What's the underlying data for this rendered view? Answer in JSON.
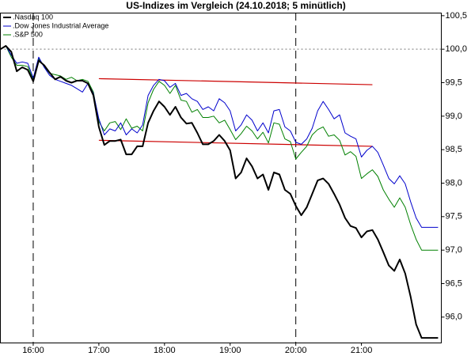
{
  "chart_data": {
    "type": "line",
    "title": "US-Indizes im Vergleich (24.10.2018; 5 minütlich)",
    "x": [
      930,
      935,
      940,
      945,
      950,
      955,
      960,
      965,
      970,
      975,
      980,
      985,
      990,
      995,
      1000,
      1005,
      1010,
      1015,
      1020,
      1025,
      1030,
      1035,
      1040,
      1045,
      1050,
      1055,
      1060,
      1065,
      1070,
      1075,
      1080,
      1085,
      1090,
      1095,
      1100,
      1105,
      1110,
      1115,
      1120,
      1125,
      1130,
      1135,
      1140,
      1145,
      1150,
      1155,
      1160,
      1165,
      1170,
      1175,
      1180,
      1185,
      1190,
      1195,
      1200,
      1205,
      1210,
      1215,
      1220,
      1225,
      1230,
      1235,
      1240,
      1245,
      1250,
      1255,
      1260,
      1265,
      1270,
      1275,
      1280,
      1285,
      1290,
      1295,
      1300,
      1305,
      1310,
      1315,
      1320,
      1325,
      1330
    ],
    "series": [
      {
        "name": ".Nasdaq 100",
        "color": "#000000",
        "width": 2,
        "values": [
          100.0,
          100.05,
          99.96,
          99.67,
          99.73,
          99.69,
          99.52,
          99.83,
          99.76,
          99.65,
          99.55,
          99.59,
          99.53,
          99.5,
          99.53,
          99.53,
          99.49,
          99.31,
          98.84,
          98.57,
          98.63,
          98.63,
          98.65,
          98.43,
          98.43,
          98.55,
          98.55,
          98.9,
          99.08,
          99.22,
          99.14,
          99.02,
          99.14,
          98.98,
          98.89,
          98.9,
          98.75,
          98.58,
          98.58,
          98.63,
          98.72,
          98.63,
          98.49,
          98.07,
          98.16,
          98.37,
          98.25,
          98.07,
          98.13,
          97.9,
          98.16,
          98.13,
          97.9,
          97.84,
          97.66,
          97.52,
          97.64,
          97.84,
          98.04,
          98.07,
          97.99,
          97.84,
          97.68,
          97.48,
          97.36,
          97.33,
          97.19,
          97.28,
          97.3,
          97.16,
          96.97,
          96.77,
          96.69,
          96.86,
          96.65,
          96.3,
          95.89,
          95.69,
          95.69,
          95.69,
          95.69
        ]
      },
      {
        "name": ".Dow Jones Industrial Average",
        "color": "#0000cc",
        "width": 1,
        "values": [
          100.0,
          100.05,
          99.91,
          99.79,
          99.81,
          99.79,
          99.57,
          99.88,
          99.73,
          99.61,
          99.55,
          99.52,
          99.49,
          99.46,
          99.41,
          99.36,
          99.49,
          99.34,
          98.96,
          98.72,
          98.81,
          98.78,
          98.9,
          98.72,
          98.81,
          98.75,
          98.87,
          99.31,
          99.46,
          99.55,
          99.53,
          99.43,
          99.49,
          99.31,
          99.34,
          99.26,
          99.22,
          99.1,
          99.14,
          99.08,
          99.26,
          99.2,
          99.08,
          98.78,
          98.87,
          99.02,
          98.94,
          98.78,
          98.9,
          98.75,
          99.08,
          99.1,
          98.84,
          98.78,
          98.61,
          98.58,
          98.66,
          98.82,
          99.08,
          99.22,
          99.1,
          98.96,
          99.02,
          98.75,
          98.7,
          98.66,
          98.39,
          98.49,
          98.55,
          98.46,
          98.27,
          98.07,
          97.99,
          98.11,
          97.99,
          97.72,
          97.48,
          97.34,
          97.34,
          97.34,
          97.34
        ]
      },
      {
        "name": ".S&P 500",
        "color": "#008000",
        "width": 1,
        "values": [
          100.0,
          100.05,
          99.88,
          99.76,
          99.76,
          99.74,
          99.55,
          99.86,
          99.74,
          99.64,
          99.62,
          99.6,
          99.55,
          99.58,
          99.53,
          99.55,
          99.52,
          99.36,
          98.92,
          98.78,
          98.9,
          98.92,
          98.8,
          98.96,
          98.82,
          98.85,
          98.78,
          99.2,
          99.4,
          99.52,
          99.46,
          99.34,
          99.46,
          99.24,
          99.22,
          99.06,
          99.1,
          98.98,
          98.98,
          99.0,
          98.9,
          98.94,
          98.8,
          98.65,
          98.74,
          98.85,
          98.78,
          98.66,
          98.76,
          98.6,
          98.9,
          98.88,
          98.66,
          98.62,
          98.36,
          98.46,
          98.55,
          98.72,
          98.8,
          98.84,
          98.7,
          98.72,
          98.64,
          98.42,
          98.47,
          98.4,
          98.07,
          98.14,
          98.2,
          98.1,
          97.9,
          97.76,
          97.64,
          97.78,
          97.64,
          97.38,
          97.16,
          97.0,
          97.0,
          97.0,
          97.0
        ]
      }
    ],
    "trend_lines": [
      {
        "color": "#cc0000",
        "x": [
          1020,
          1270
        ],
        "values": [
          99.56,
          99.47
        ]
      },
      {
        "color": "#cc0000",
        "x": [
          1020,
          1270
        ],
        "values": [
          98.64,
          98.55
        ]
      }
    ],
    "vertical_markers": [
      960,
      1200
    ],
    "reference_line": 100,
    "xlim": [
      930,
      1333
    ],
    "ylim": [
      95.62,
      100.64
    ],
    "xticks": [
      {
        "value": 960,
        "label": "16:00"
      },
      {
        "value": 1020,
        "label": "17:00"
      },
      {
        "value": 1080,
        "label": "18:00"
      },
      {
        "value": 1140,
        "label": "19:00"
      },
      {
        "value": 1200,
        "label": "20:00"
      },
      {
        "value": 1260,
        "label": "21:00"
      }
    ],
    "yticks": [
      {
        "value": 96,
        "label": "96,0"
      },
      {
        "value": 96.5,
        "label": "96,5"
      },
      {
        "value": 97,
        "label": "97,0"
      },
      {
        "value": 97.5,
        "label": "97,5"
      },
      {
        "value": 98,
        "label": "98,0"
      },
      {
        "value": 98.5,
        "label": "98,5"
      },
      {
        "value": 99,
        "label": "99,0"
      },
      {
        "value": 99.5,
        "label": "99,5"
      },
      {
        "value": 100,
        "label": "100,0"
      },
      {
        "value": 100.5,
        "label": "100,5"
      }
    ],
    "legend": "top-left"
  }
}
